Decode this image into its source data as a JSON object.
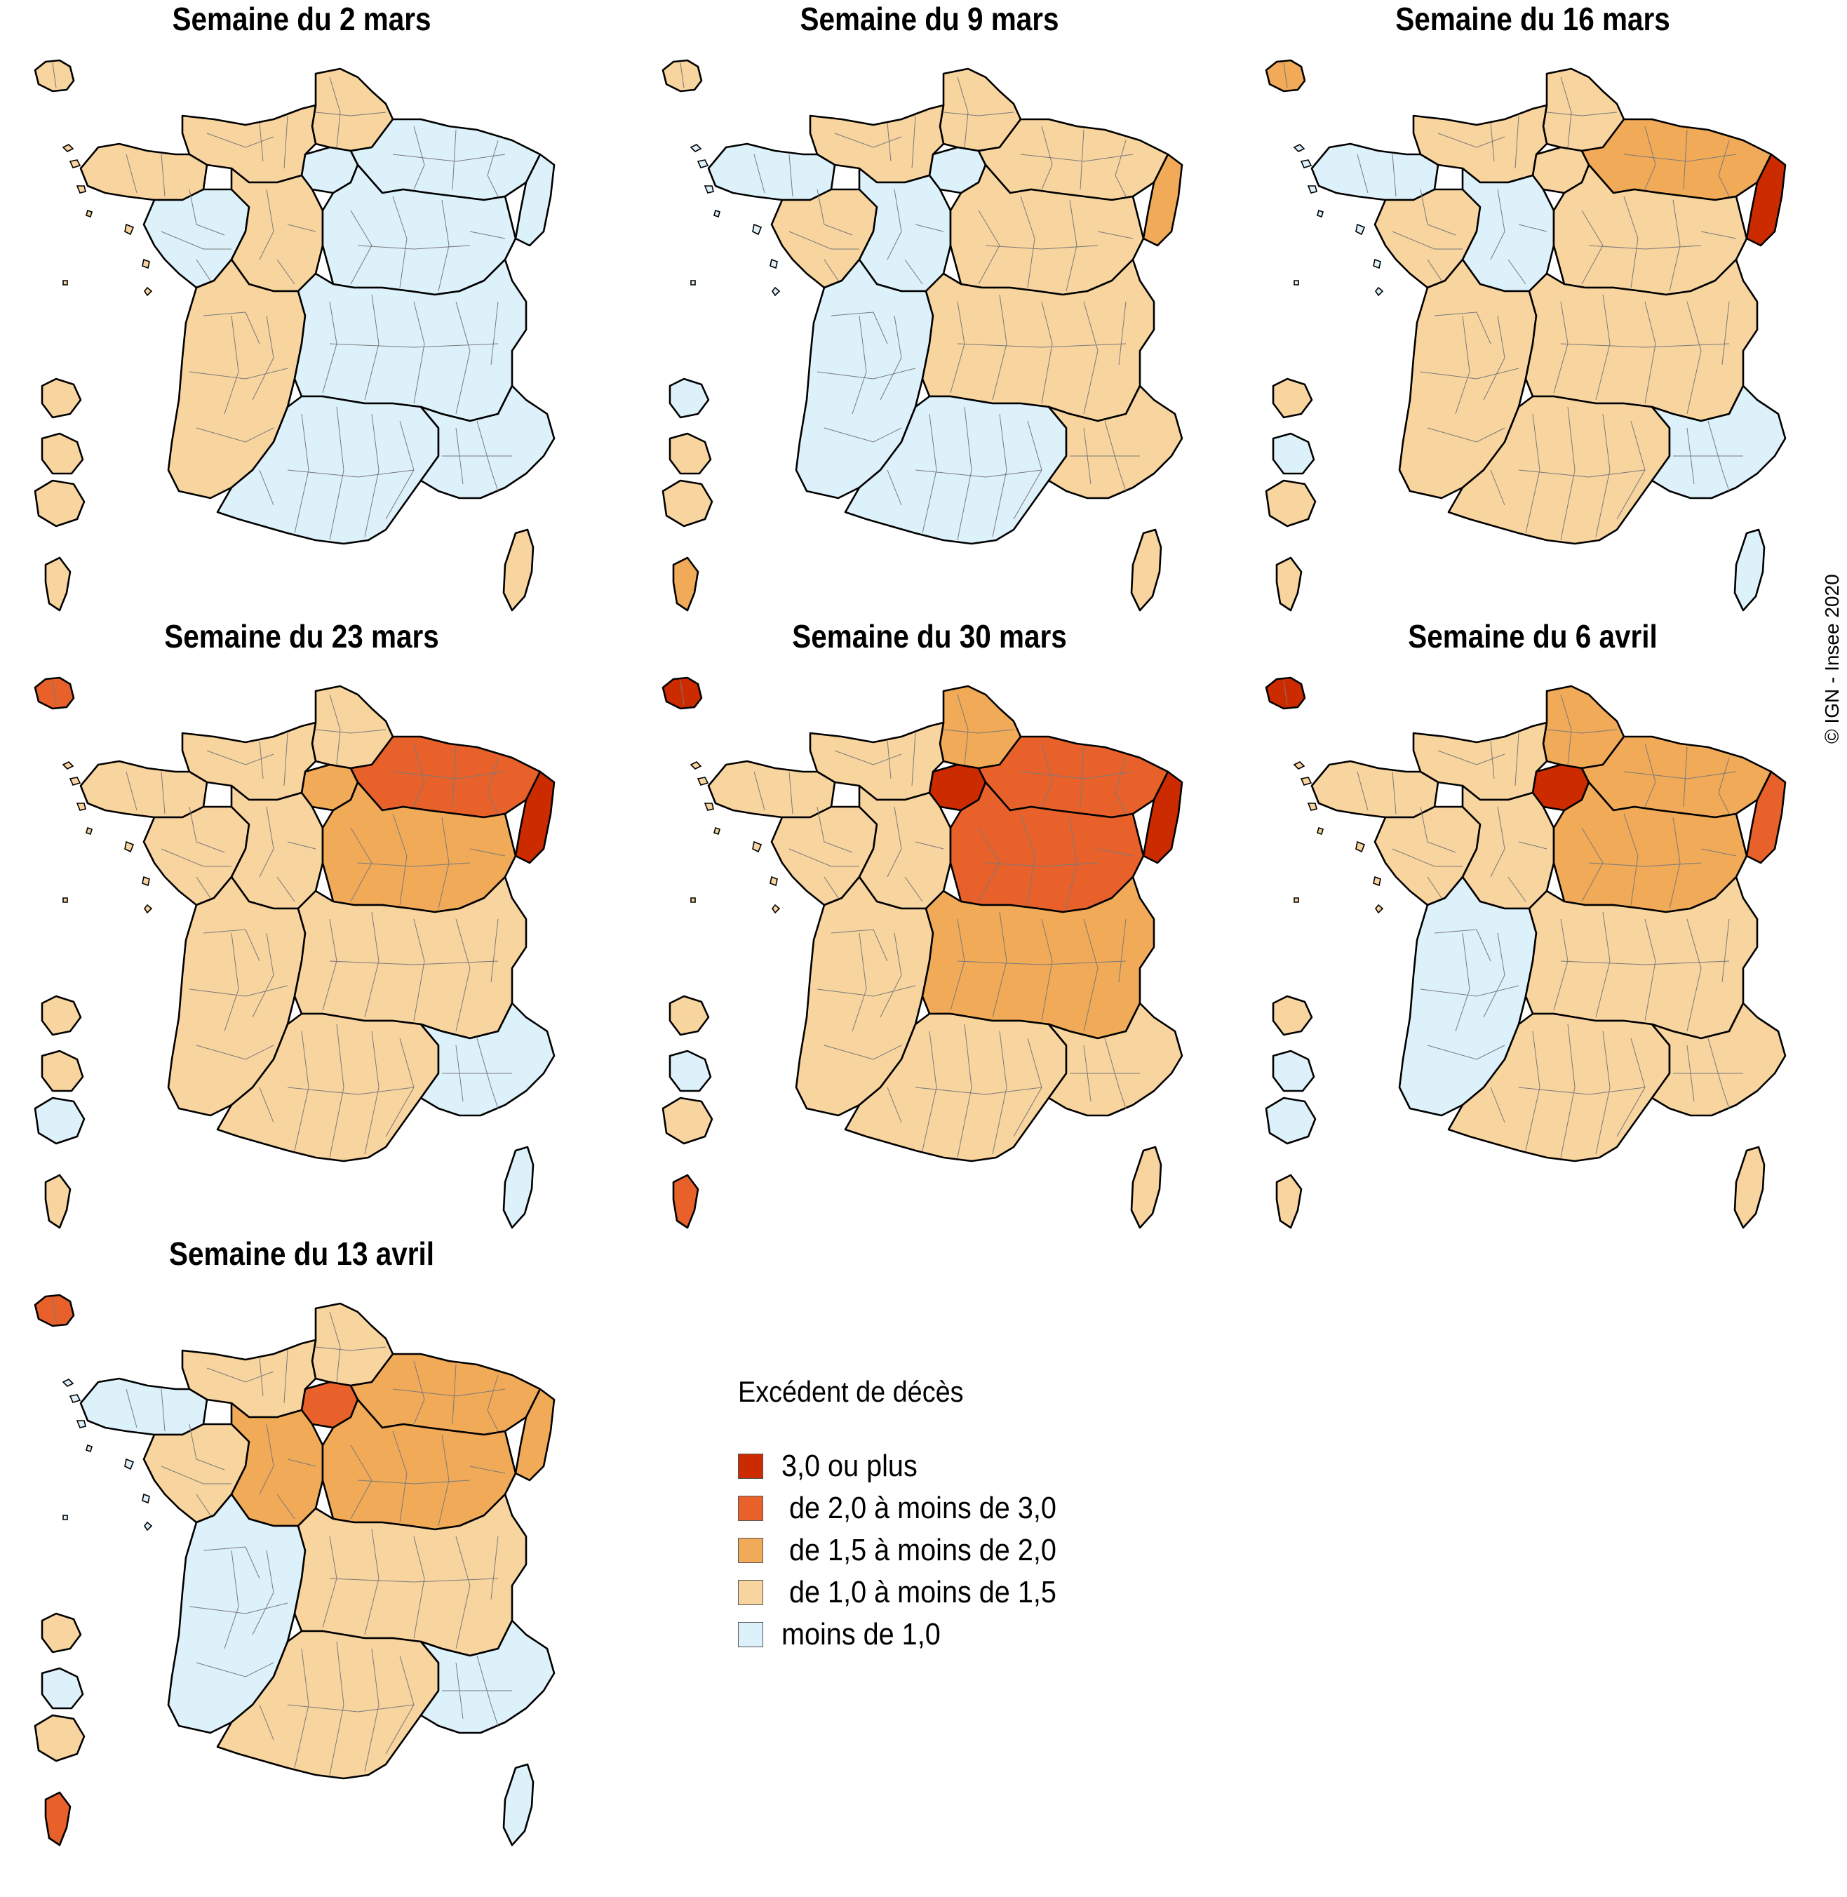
{
  "colors": {
    "c3": "#cc2b00",
    "c2": "#e8612a",
    "c15": "#f1aa57",
    "c1": "#f8d49f",
    "c0": "#ddf1fb",
    "border": "#7a7a7a",
    "outline": "#000000"
  },
  "panels": [
    {
      "title": "Semaine du 2 mars",
      "regions": {
        "idf": "c0",
        "hdf": "c1",
        "ge": "c0",
        "normandie": "c1",
        "bretagne": "c1",
        "pdl": "c0",
        "cvl": "c1",
        "bfc": "c0",
        "naq": "c1",
        "ara": "c0",
        "occitanie": "c0",
        "paca": "c0",
        "corse": "c1",
        "gp": "c1",
        "mq": "c1",
        "gf": "c1",
        "re": "c1",
        "yt": "c1",
        "alsace": "c0"
      }
    },
    {
      "title": "Semaine du 9 mars",
      "regions": {
        "idf": "c0",
        "hdf": "c1",
        "ge": "c1",
        "normandie": "c1",
        "bretagne": "c0",
        "pdl": "c1",
        "cvl": "c0",
        "bfc": "c1",
        "naq": "c0",
        "ara": "c1",
        "occitanie": "c0",
        "paca": "c1",
        "corse": "c1",
        "gp": "c1",
        "mq": "c0",
        "gf": "c1",
        "re": "c1",
        "yt": "c15",
        "alsace": "c15"
      }
    },
    {
      "title": "Semaine du 16 mars",
      "regions": {
        "idf": "c1",
        "hdf": "c1",
        "ge": "c15",
        "normandie": "c1",
        "bretagne": "c0",
        "pdl": "c1",
        "cvl": "c0",
        "bfc": "c1",
        "naq": "c1",
        "ara": "c1",
        "occitanie": "c1",
        "paca": "c0",
        "corse": "c0",
        "gp": "c15",
        "mq": "c1",
        "gf": "c0",
        "re": "c1",
        "yt": "c1",
        "alsace": "c3"
      }
    },
    {
      "title": "Semaine du 23 mars",
      "regions": {
        "idf": "c15",
        "hdf": "c1",
        "ge": "c2",
        "normandie": "c1",
        "bretagne": "c1",
        "pdl": "c1",
        "cvl": "c1",
        "bfc": "c15",
        "naq": "c1",
        "ara": "c1",
        "occitanie": "c1",
        "paca": "c0",
        "corse": "c0",
        "gp": "c2",
        "mq": "c1",
        "gf": "c1",
        "re": "c0",
        "yt": "c1",
        "alsace": "c3"
      }
    },
    {
      "title": "Semaine du 30 mars",
      "regions": {
        "idf": "c3",
        "hdf": "c15",
        "ge": "c2",
        "normandie": "c1",
        "bretagne": "c1",
        "pdl": "c1",
        "cvl": "c1",
        "bfc": "c2",
        "naq": "c1",
        "ara": "c15",
        "occitanie": "c1",
        "paca": "c1",
        "corse": "c1",
        "gp": "c3",
        "mq": "c1",
        "gf": "c0",
        "re": "c1",
        "yt": "c2",
        "alsace": "c3"
      }
    },
    {
      "title": "Semaine du 6 avril",
      "regions": {
        "idf": "c3",
        "hdf": "c15",
        "ge": "c15",
        "normandie": "c1",
        "bretagne": "c1",
        "pdl": "c1",
        "cvl": "c1",
        "bfc": "c15",
        "naq": "c0",
        "ara": "c1",
        "occitanie": "c1",
        "paca": "c1",
        "corse": "c1",
        "gp": "c3",
        "mq": "c1",
        "gf": "c0",
        "re": "c0",
        "yt": "c1",
        "alsace": "c2"
      }
    },
    {
      "title": "Semaine du 13 avril",
      "regions": {
        "idf": "c2",
        "hdf": "c1",
        "ge": "c15",
        "normandie": "c1",
        "bretagne": "c0",
        "pdl": "c1",
        "cvl": "c15",
        "bfc": "c15",
        "naq": "c0",
        "ara": "c1",
        "occitanie": "c1",
        "paca": "c0",
        "corse": "c0",
        "gp": "c2",
        "mq": "c1",
        "gf": "c0",
        "re": "c1",
        "yt": "c2",
        "alsace": "c15"
      }
    }
  ],
  "legend": {
    "title": "Excédent de décès",
    "items": [
      {
        "label": "3,0 ou plus",
        "color": "c3"
      },
      {
        "label": " de 2,0 à moins de 3,0",
        "color": "c2"
      },
      {
        "label": " de 1,5 à moins de 2,0",
        "color": "c15"
      },
      {
        "label": " de 1,0 à moins de 1,5",
        "color": "c1"
      },
      {
        "label": "moins de 1,0",
        "color": "c0"
      }
    ]
  },
  "credit": "© IGN - Insee 2020"
}
